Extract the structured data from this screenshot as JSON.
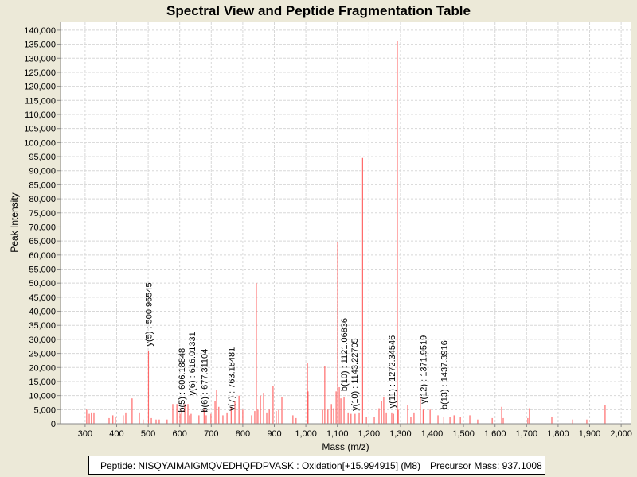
{
  "chart_data": {
    "type": "bar",
    "title": "Spectral View and Peptide Fragmentation Table",
    "xlabel": "Mass (m/z)",
    "ylabel": "Peak Intensity",
    "xlim": [
      222,
      2030
    ],
    "ylim": [
      0,
      142800
    ],
    "xticks": [
      300,
      400,
      500,
      600,
      700,
      800,
      900,
      1000,
      1100,
      1200,
      1300,
      1400,
      1500,
      1600,
      1700,
      1800,
      1900,
      2000
    ],
    "xtick_labels": [
      "300",
      "400",
      "500",
      "600",
      "700",
      "800",
      "900",
      "1,000",
      "1,100",
      "1,200",
      "1,300",
      "1,400",
      "1,500",
      "1,600",
      "1,700",
      "1,800",
      "1,900",
      "2,000"
    ],
    "yticks": [
      0,
      5000,
      10000,
      15000,
      20000,
      25000,
      30000,
      35000,
      40000,
      45000,
      50000,
      55000,
      60000,
      65000,
      70000,
      75000,
      80000,
      85000,
      90000,
      95000,
      100000,
      105000,
      110000,
      115000,
      120000,
      125000,
      130000,
      135000,
      140000
    ],
    "ytick_labels": [
      "0",
      "5,000",
      "10,000",
      "15,000",
      "20,000",
      "25,000",
      "30,000",
      "35,000",
      "40,000",
      "45,000",
      "50,000",
      "55,000",
      "60,000",
      "65,000",
      "70,000",
      "75,000",
      "80,000",
      "85,000",
      "90,000",
      "95,000",
      "100,000",
      "105,000",
      "110,000",
      "115,000",
      "120,000",
      "125,000",
      "130,000",
      "135,000",
      "140,000"
    ],
    "grid": true,
    "series_color": "#ff5050",
    "peaks": [
      [
        305,
        5000
      ],
      [
        313,
        3500
      ],
      [
        320,
        4000
      ],
      [
        328,
        4000
      ],
      [
        376,
        2000
      ],
      [
        388,
        3000
      ],
      [
        396,
        2500
      ],
      [
        421,
        3000
      ],
      [
        429,
        4000
      ],
      [
        449,
        9000
      ],
      [
        472,
        4000
      ],
      [
        484,
        1500
      ],
      [
        500.97,
        26000
      ],
      [
        510,
        2000
      ],
      [
        525,
        1500
      ],
      [
        535,
        1500
      ],
      [
        560,
        1500
      ],
      [
        578,
        7000
      ],
      [
        591,
        7000
      ],
      [
        601,
        3500
      ],
      [
        606.18,
        5000
      ],
      [
        616.01,
        7000
      ],
      [
        626,
        7000
      ],
      [
        631,
        3000
      ],
      [
        636,
        3500
      ],
      [
        661,
        3000
      ],
      [
        677.31,
        5000
      ],
      [
        684,
        3000
      ],
      [
        699,
        3500
      ],
      [
        712,
        8000
      ],
      [
        717,
        12000
      ],
      [
        724,
        6000
      ],
      [
        737,
        3000
      ],
      [
        750,
        4000
      ],
      [
        763.18,
        6000
      ],
      [
        775,
        8000
      ],
      [
        788,
        10000
      ],
      [
        800,
        5000
      ],
      [
        828,
        3000
      ],
      [
        838,
        4500
      ],
      [
        843,
        50000
      ],
      [
        848,
        5000
      ],
      [
        856,
        10000
      ],
      [
        866,
        11000
      ],
      [
        876,
        4000
      ],
      [
        884,
        5000
      ],
      [
        896,
        13500
      ],
      [
        906,
        4500
      ],
      [
        914,
        5000
      ],
      [
        924,
        9500
      ],
      [
        959,
        3000
      ],
      [
        969,
        2000
      ],
      [
        1005,
        21500
      ],
      [
        1007,
        11500
      ],
      [
        1053,
        5000
      ],
      [
        1060,
        20500
      ],
      [
        1070,
        5000
      ],
      [
        1081,
        7000
      ],
      [
        1088,
        5500
      ],
      [
        1096,
        11500
      ],
      [
        1101,
        64500
      ],
      [
        1106,
        13000
      ],
      [
        1111,
        9000
      ],
      [
        1121.07,
        9500
      ],
      [
        1134,
        4000
      ],
      [
        1143.23,
        3500
      ],
      [
        1156,
        3500
      ],
      [
        1169,
        4000
      ],
      [
        1180,
        94500
      ],
      [
        1192,
        2500
      ],
      [
        1217,
        2500
      ],
      [
        1232,
        5500
      ],
      [
        1240,
        8000
      ],
      [
        1247,
        9500
      ],
      [
        1255,
        4000
      ],
      [
        1272.35,
        4000
      ],
      [
        1278,
        3500
      ],
      [
        1290,
        136000
      ],
      [
        1293,
        5000
      ],
      [
        1323,
        6500
      ],
      [
        1333,
        2500
      ],
      [
        1343,
        4000
      ],
      [
        1363,
        9500
      ],
      [
        1371.95,
        5000
      ],
      [
        1394,
        5000
      ],
      [
        1419,
        3000
      ],
      [
        1437.39,
        2500
      ],
      [
        1457,
        2500
      ],
      [
        1470,
        3000
      ],
      [
        1490,
        2500
      ],
      [
        1520,
        3000
      ],
      [
        1545,
        1500
      ],
      [
        1591,
        2000
      ],
      [
        1621,
        6000
      ],
      [
        1626,
        2000
      ],
      [
        1704,
        2000
      ],
      [
        1709,
        5500
      ],
      [
        1780,
        2500
      ],
      [
        1846,
        1500
      ],
      [
        1891,
        1500
      ],
      [
        1949,
        6500
      ]
    ],
    "annotations": [
      {
        "label": "y(5) : 500.96545",
        "mass": 500.96545,
        "y": 27000
      },
      {
        "label": "b(5) : 606.18848",
        "mass": 606.18848,
        "y": 3500
      },
      {
        "label": "y(6) : 616.01331",
        "mass": 616.01331,
        "y": 9500
      },
      {
        "label": "b(6) : 677.31104",
        "mass": 677.31104,
        "y": 3500
      },
      {
        "label": "y(7) : 763.18481",
        "mass": 763.18481,
        "y": 4000
      },
      {
        "label": "b(10) : 1121.06836",
        "mass": 1121.06836,
        "y": 11000
      },
      {
        "label": "y(10) : 1143.22705",
        "mass": 1143.22705,
        "y": 4000
      },
      {
        "label": "y(11) : 1272.34546",
        "mass": 1272.34546,
        "y": 5000
      },
      {
        "label": "y(12) : 1371.9519",
        "mass": 1371.9519,
        "y": 6500
      },
      {
        "label": "b(13) : 1437.3916",
        "mass": 1437.3916,
        "y": 4500
      }
    ]
  },
  "legend": {
    "peptide": "Peptide: NISQYAIMAIGMQVEDHQFDPVASK : Oxidation[+15.994915] (M8)",
    "precursor": "Precursor Mass: 937.1008"
  }
}
